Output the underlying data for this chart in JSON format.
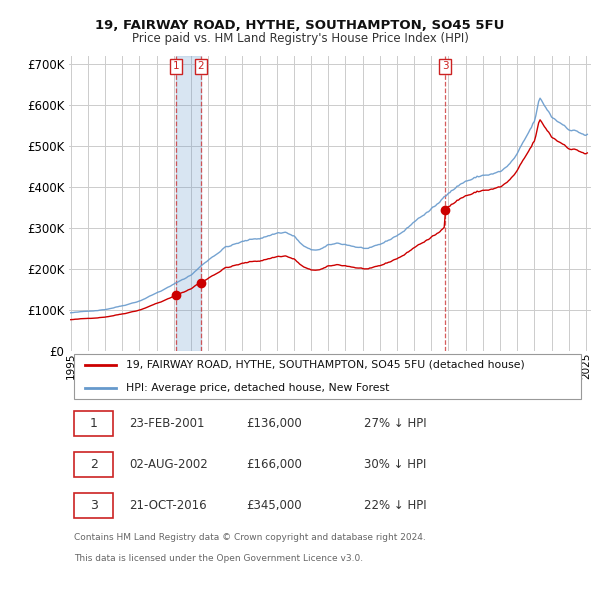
{
  "title": "19, FAIRWAY ROAD, HYTHE, SOUTHAMPTON, SO45 5FU",
  "subtitle": "Price paid vs. HM Land Registry's House Price Index (HPI)",
  "legend_property": "19, FAIRWAY ROAD, HYTHE, SOUTHAMPTON, SO45 5FU (detached house)",
  "legend_hpi": "HPI: Average price, detached house, New Forest",
  "property_color": "#cc0000",
  "hpi_color": "#6699cc",
  "background_color": "#ffffff",
  "grid_color": "#cccccc",
  "shade_color": "#ddeeff",
  "transactions": [
    {
      "num": 1,
      "price": 136000,
      "label": "23-FEB-2001",
      "pct": "27% ↓ HPI",
      "year": 2001.14
    },
    {
      "num": 2,
      "price": 166000,
      "label": "02-AUG-2002",
      "pct": "30% ↓ HPI",
      "year": 2002.58
    },
    {
      "num": 3,
      "price": 345000,
      "label": "21-OCT-2016",
      "pct": "22% ↓ HPI",
      "year": 2016.8
    }
  ],
  "footer1": "Contains HM Land Registry data © Crown copyright and database right 2024.",
  "footer2": "This data is licensed under the Open Government Licence v3.0.",
  "ylim": [
    0,
    720000
  ],
  "yticks": [
    0,
    100000,
    200000,
    300000,
    400000,
    500000,
    600000,
    700000
  ],
  "xmin": 1994.9,
  "xmax": 2025.3
}
